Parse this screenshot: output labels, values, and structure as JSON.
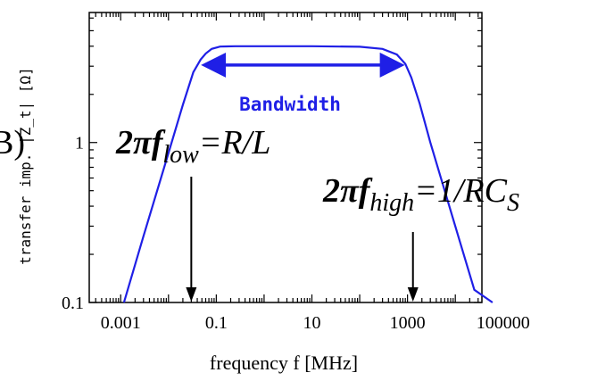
{
  "chart_data": {
    "type": "line",
    "title": "",
    "xlabel": "frequency f [MHz]",
    "ylabel": "transfer imp. |Z_t| [Ω]",
    "x_scale": "log",
    "y_scale": "log",
    "xlim": [
      0.00022,
      36000
    ],
    "ylim": [
      0.1,
      6.5
    ],
    "x_ticks": [
      {
        "value": 0.001,
        "label": "0.001"
      },
      {
        "value": 0.1,
        "label": "0.1"
      },
      {
        "value": 10,
        "label": "10"
      },
      {
        "value": 1000,
        "label": "1000"
      },
      {
        "value": 100000,
        "label": "100000"
      }
    ],
    "y_ticks": [
      {
        "value": 0.1,
        "label": "0.1"
      },
      {
        "value": 1,
        "label": "1"
      }
    ],
    "grid": false,
    "series": [
      {
        "color": "#1f1fe6",
        "x": [
          0.00117,
          0.003,
          0.01,
          0.02,
          0.033,
          0.047,
          0.06,
          0.08,
          0.12,
          0.25,
          1,
          10,
          100,
          300,
          600,
          900,
          1200,
          1800,
          3000,
          6000,
          12000,
          25000,
          60000
        ],
        "y": [
          0.1,
          0.26,
          0.86,
          1.72,
          2.75,
          3.3,
          3.6,
          3.85,
          3.98,
          4.0,
          4.0,
          4.0,
          3.97,
          3.85,
          3.55,
          3.1,
          2.55,
          1.75,
          1.0,
          0.5,
          0.25,
          0.12,
          0.1
        ]
      }
    ],
    "annotations": {
      "bandwidth_label": "Bandwidth",
      "bandwidth_from": 0.042,
      "bandwidth_to": 1000,
      "bandwidth_y": 3.05,
      "f_low_value": 0.03,
      "f_high_value": 1300,
      "f_low_formula": {
        "prefix": "2π",
        "var": "f",
        "sub": "low",
        "rest": "=R/L"
      },
      "f_high_formula": {
        "prefix": "2π",
        "var": "f",
        "sub": "high",
        "rest": "=1/RC",
        "rest_sub": "S"
      },
      "left_fragment": "B)"
    }
  }
}
